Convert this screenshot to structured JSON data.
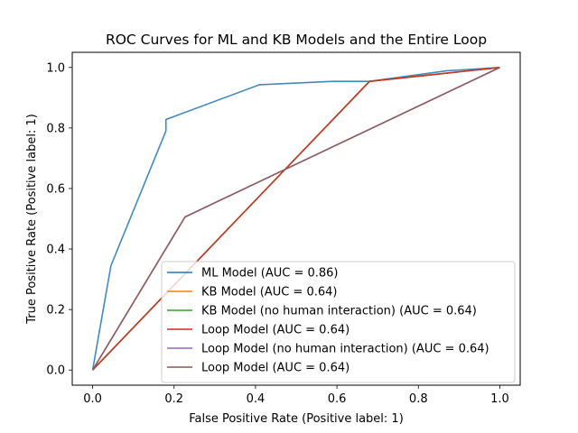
{
  "chart_data": {
    "type": "line",
    "title": "ROC Curves for ML and KB Models and the Entire Loop",
    "xlabel": "False Positive Rate (Positive label: 1)",
    "ylabel": "True Positive Rate (Positive label: 1)",
    "xlim": [
      -0.05,
      1.05
    ],
    "ylim": [
      -0.05,
      1.05
    ],
    "xticks": [
      "0.0",
      "0.2",
      "0.4",
      "0.6",
      "0.8",
      "1.0"
    ],
    "yticks": [
      "0.0",
      "0.2",
      "0.4",
      "0.6",
      "0.8",
      "1.0"
    ],
    "grid": false,
    "legend_position": "lower-right",
    "series": [
      {
        "name": "ML Model (AUC = 0.86)",
        "color": "#1f77b4",
        "x": [
          0.0,
          0.045,
          0.18,
          0.18,
          0.41,
          0.59,
          0.68,
          0.87,
          1.0
        ],
        "y": [
          0.0,
          0.345,
          0.79,
          0.828,
          0.943,
          0.954,
          0.954,
          0.989,
          1.0
        ]
      },
      {
        "name": "KB Model (AUC = 0.64)",
        "color": "#ff7f0e",
        "x": [
          0.0,
          0.68,
          1.0
        ],
        "y": [
          0.0,
          0.954,
          1.0
        ]
      },
      {
        "name": "KB Model (no human interaction) (AUC = 0.64)",
        "color": "#2ca02c",
        "x": [
          0.0,
          0.68,
          1.0
        ],
        "y": [
          0.0,
          0.954,
          1.0
        ]
      },
      {
        "name": "Loop Model (AUC = 0.64)",
        "color": "#d62728",
        "x": [
          0.0,
          0.68,
          1.0
        ],
        "y": [
          0.0,
          0.954,
          1.0
        ]
      },
      {
        "name": "Loop Model (no human interaction) (AUC = 0.64)",
        "color": "#9467bd",
        "x": [
          0.0,
          0.227,
          1.0
        ],
        "y": [
          0.0,
          0.506,
          1.0
        ]
      },
      {
        "name": "Loop Model (AUC = 0.64)",
        "color": "#8c564b",
        "x": [
          0.0,
          0.227,
          1.0
        ],
        "y": [
          0.0,
          0.506,
          1.0
        ]
      }
    ]
  }
}
